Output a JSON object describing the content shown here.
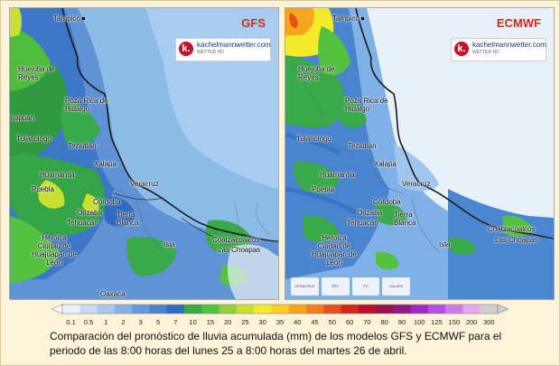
{
  "panels": {
    "gfs": {
      "label": "GFS"
    },
    "ecmwf": {
      "label": "ECMWF"
    }
  },
  "logo": {
    "letter": "k.",
    "name": "kachelmannwetter.com",
    "sub": "WETTER HD"
  },
  "gfs_cities": [
    "Tampico",
    "Huejutla de Reyes",
    "Poza Rica de Hidalgo",
    "Tulancingo",
    "Teziutlán",
    "Huamantla",
    "Xalapa",
    "Puebla",
    "Córdoba",
    "Orizaba",
    "Tehuacán",
    "Veracruz",
    "Tierra Blanca",
    "Heroica Ciudad de Huajuapan de León",
    "Isla",
    "Coatzacoalcos",
    "Las Choapas",
    "Oaxaca",
    "Irapuan"
  ],
  "ecmwf_cities": [
    "Tampico",
    "Huejutla de Reyes",
    "Poza Rica de Hidalgo",
    "Tulancingo",
    "Teziutlán",
    "Huamantla",
    "Xalapa",
    "Puebla",
    "Córdoba",
    "Orizaba",
    "Tehuacán",
    "Veracruz",
    "Tierra Blanca",
    "Heroica Ciudad de Huajuapan de León",
    "Isla",
    "Coatzacoalcos",
    "Las Choapas"
  ],
  "gov_logos": [
    "VERACRUZ",
    "SPC",
    "PC",
    "XALAPA"
  ],
  "legend": {
    "unit": "mm",
    "ticks": [
      "0.1",
      "0.5",
      "1",
      "2",
      "3",
      "5",
      "7",
      "10",
      "15",
      "20",
      "25",
      "30",
      "35",
      "40",
      "45",
      "50",
      "60",
      "70",
      "80",
      "90",
      "100",
      "125",
      "150",
      "200",
      "300"
    ],
    "colors": [
      "#eaf2fb",
      "#c8dcf3",
      "#a7c7ec",
      "#86b1e2",
      "#6699d8",
      "#4a82cc",
      "#2f6bbf",
      "#3aa94a",
      "#55c23f",
      "#8fd13a",
      "#c9e02f",
      "#f3ea2a",
      "#f9cf23",
      "#f8a51e",
      "#f37c1c",
      "#e8501a",
      "#d4261a",
      "#b8102a",
      "#9b0f4b",
      "#8b1a86",
      "#9d2bc2",
      "#b44fe0",
      "#d07ce8",
      "#e3a8ee",
      "#cfcfcf"
    ]
  },
  "caption": "Comparación del pronóstico de lluvia acumulada (mm) de los modelos GFS y ECMWF para el periodo de las 8:00 horas del lunes 25 a 8:00 horas del martes 26 de abril."
}
